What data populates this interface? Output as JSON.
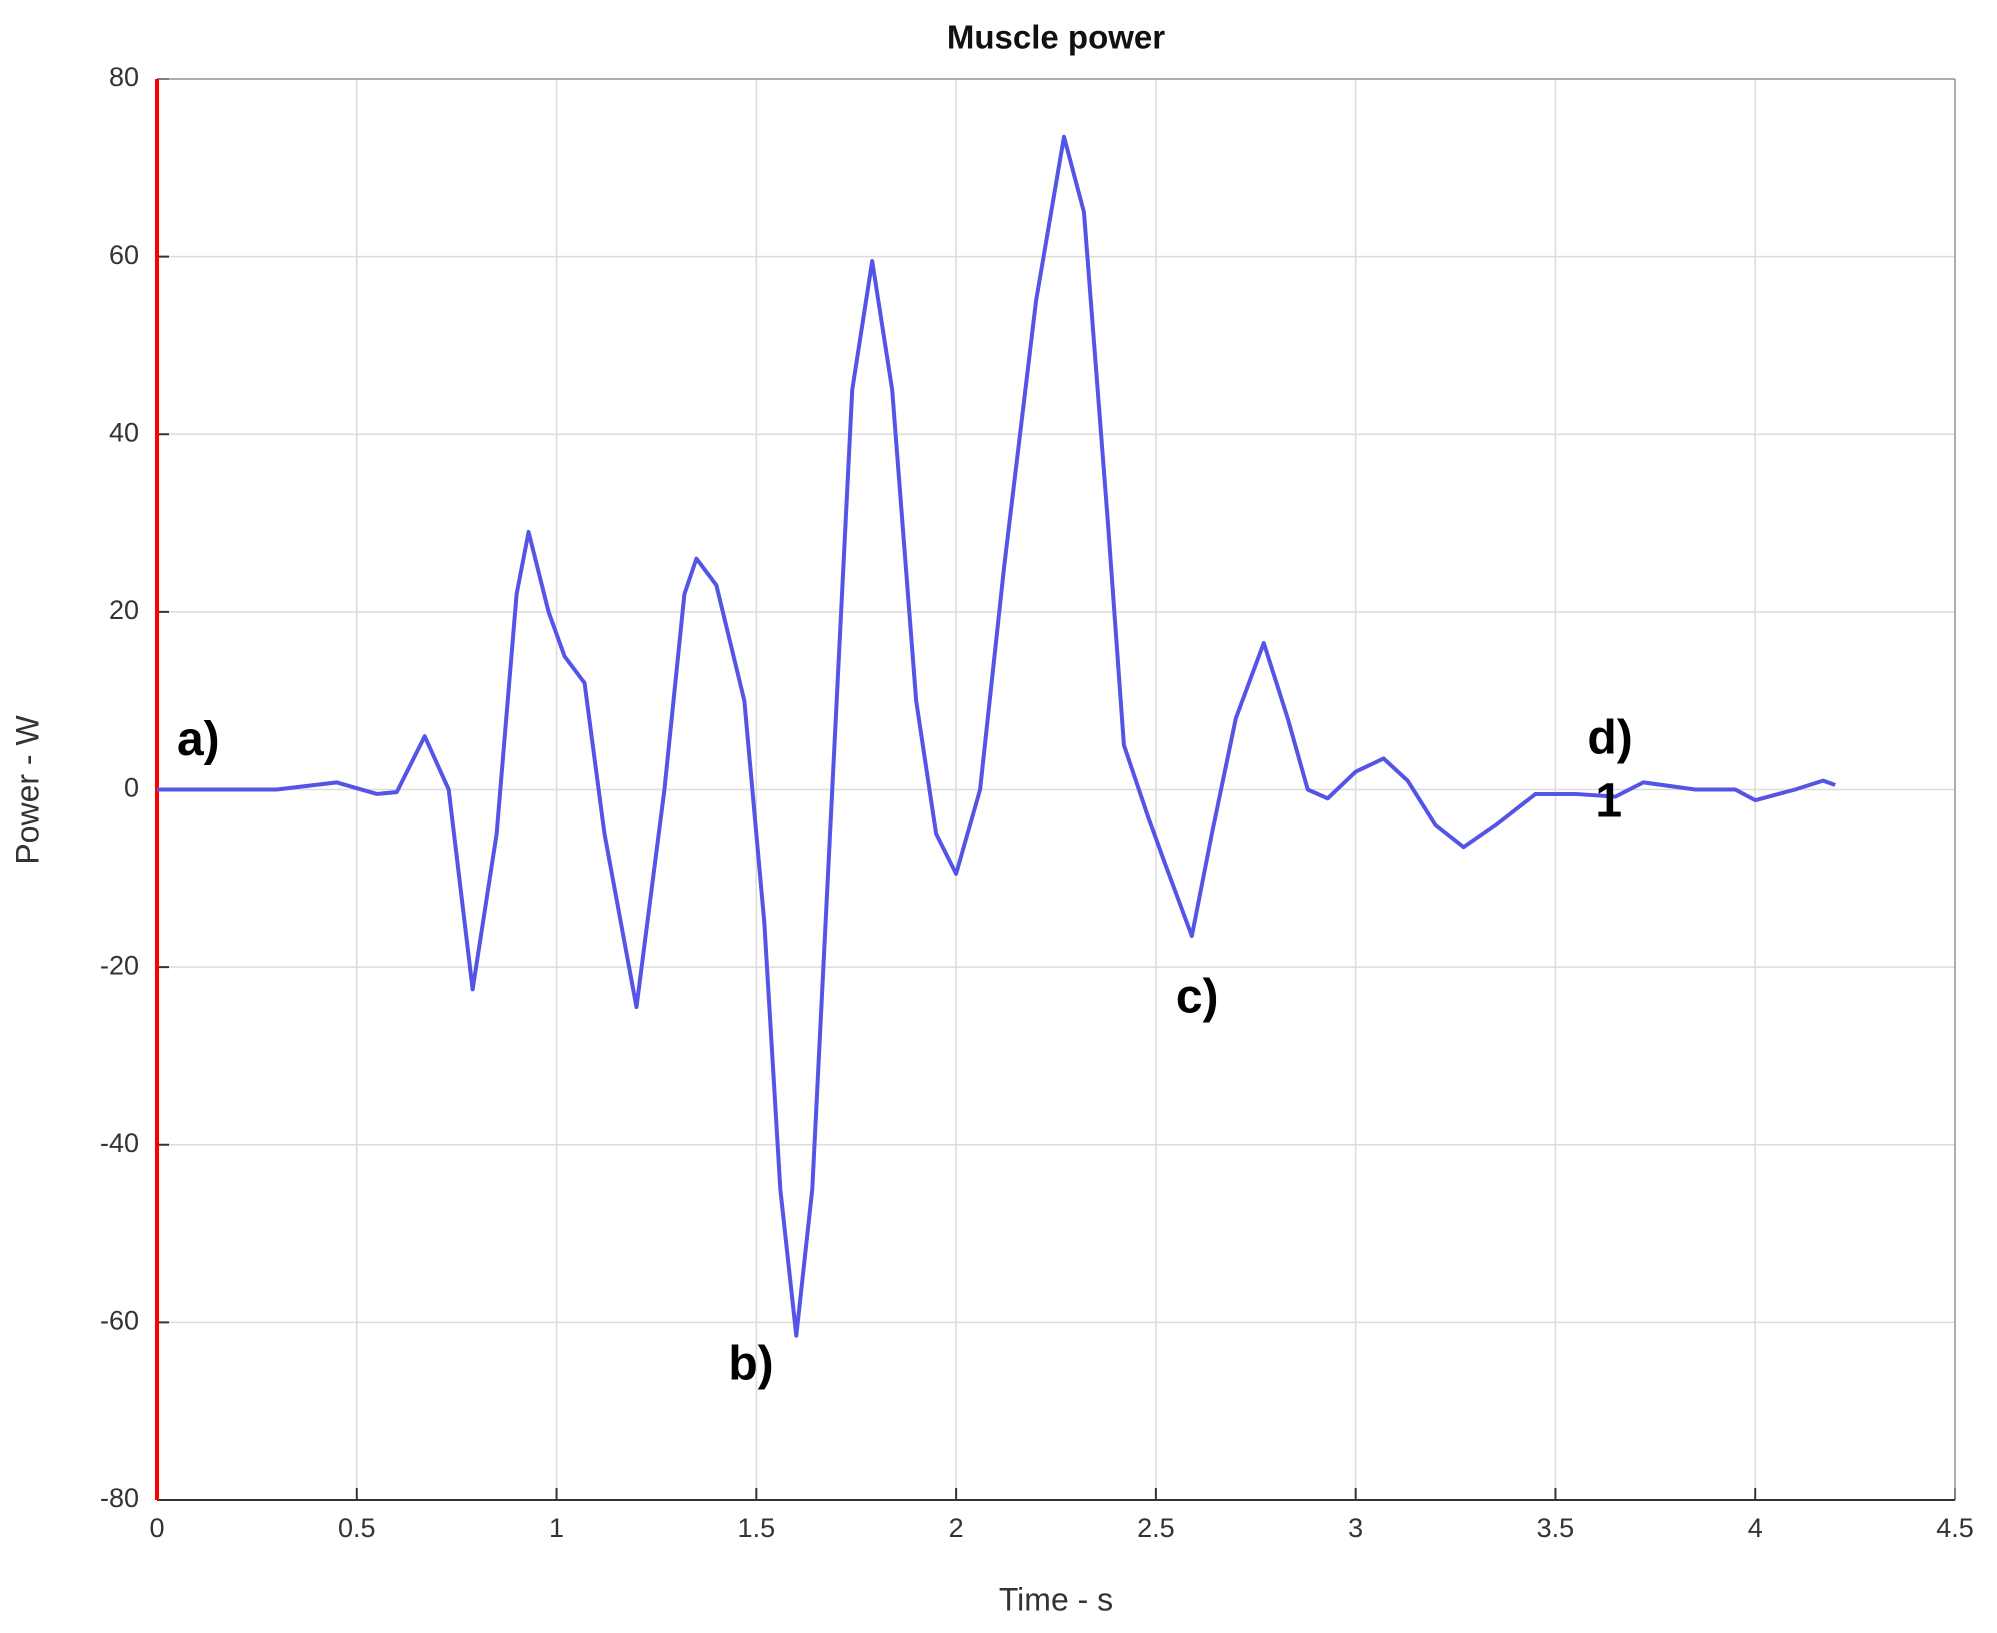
{
  "chart_data": {
    "type": "line",
    "title": "Muscle power",
    "x_label": "Time - s",
    "y_label": "Power - W",
    "x": [
      0,
      0.3,
      0.45,
      0.55,
      0.6,
      0.67,
      0.73,
      0.79,
      0.85,
      0.9,
      0.93,
      0.98,
      1.02,
      1.07,
      1.12,
      1.2,
      1.27,
      1.32,
      1.35,
      1.4,
      1.47,
      1.52,
      1.56,
      1.6,
      1.64,
      1.69,
      1.74,
      1.79,
      1.84,
      1.9,
      1.95,
      2.0,
      2.06,
      2.12,
      2.2,
      2.27,
      2.32,
      2.38,
      2.42,
      2.48,
      2.52,
      2.59,
      2.64,
      2.7,
      2.77,
      2.83,
      2.88,
      2.93,
      3.0,
      3.07,
      3.13,
      3.2,
      3.27,
      3.35,
      3.45,
      3.55,
      3.65,
      3.72,
      3.85,
      3.95,
      4.0,
      4.1,
      4.17,
      4.2
    ],
    "values": [
      0,
      0,
      0.8,
      -0.5,
      -0.3,
      6,
      0,
      -22.5,
      -5,
      22,
      29,
      20,
      15,
      12,
      -5,
      -24.5,
      0,
      22,
      26,
      23,
      10,
      -15,
      -45,
      -61.5,
      -45,
      0,
      45,
      59.5,
      45,
      10,
      -5,
      -9.5,
      0,
      25,
      55,
      73.5,
      65,
      30,
      5,
      -3,
      -8,
      -16.5,
      -5,
      8,
      16.5,
      8,
      0,
      -1,
      2,
      3.5,
      1,
      -4,
      -6.5,
      -4,
      -0.5,
      -0.5,
      -0.8,
      0.8,
      0,
      0,
      -1.2,
      0,
      1,
      0.5
    ],
    "color": "#5454e6",
    "y_axis_color": "#ff0000",
    "xlim": [
      0,
      4.5
    ],
    "xticks": [
      0,
      0.5,
      1,
      1.5,
      2,
      2.5,
      3,
      3.5,
      4,
      4.5
    ],
    "ylim": [
      -80,
      80
    ],
    "yticks": [
      -80,
      -60,
      -40,
      -20,
      0,
      20,
      40,
      60,
      80
    ],
    "grid": true,
    "annotations": [
      {
        "text": "a)",
        "x": 0.05,
        "y": 5.3
      },
      {
        "text": "b)",
        "x": 1.43,
        "y": -65
      },
      {
        "text": "c)",
        "x": 2.55,
        "y": -23.7
      },
      {
        "text": "d)",
        "x": 3.58,
        "y": 5.5
      },
      {
        "text": "1",
        "x": 3.6,
        "y": -1.6
      }
    ]
  }
}
